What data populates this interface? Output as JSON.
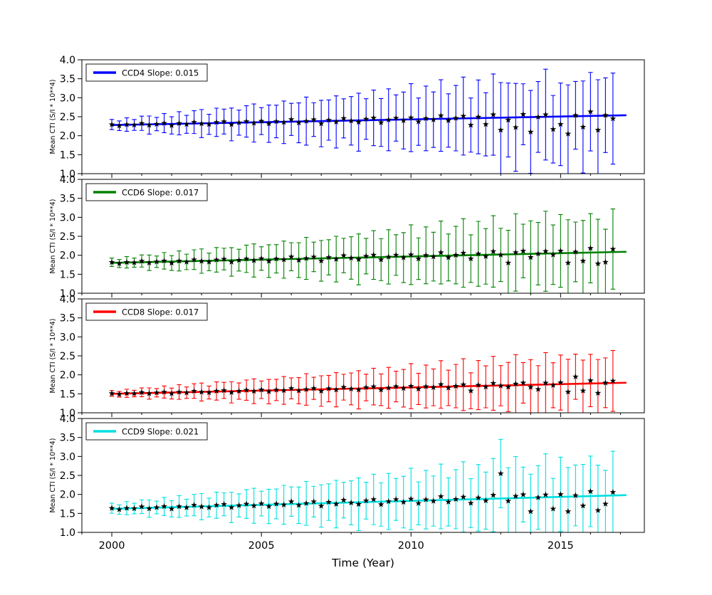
{
  "figure": {
    "title": "",
    "background": "#ffffff"
  },
  "chart_data": {
    "type": "errorbar-scatter",
    "xlabel": "Time (Year)",
    "ylabel": "Mean CTI (S/I * 10**4)",
    "xlim": [
      1999.0,
      2017.8
    ],
    "ylim": [
      1.0,
      4.0
    ],
    "x_ticks": [
      2000,
      2005,
      2010,
      2015
    ],
    "y_ticks": [
      1.0,
      1.5,
      2.0,
      2.5,
      3.0,
      3.5,
      4.0
    ],
    "grid": false,
    "legend_position": "upper-left",
    "marker": {
      "shape": "star",
      "color": "#000000"
    },
    "x": [
      2000,
      2000.25,
      2000.5,
      2000.75,
      2001,
      2001.25,
      2001.5,
      2001.75,
      2002,
      2002.25,
      2002.5,
      2002.75,
      2003,
      2003.25,
      2003.5,
      2003.75,
      2004,
      2004.25,
      2004.5,
      2004.75,
      2005,
      2005.25,
      2005.5,
      2005.75,
      2006,
      2006.25,
      2006.5,
      2006.75,
      2007,
      2007.25,
      2007.5,
      2007.75,
      2008,
      2008.25,
      2008.5,
      2008.75,
      2009,
      2009.25,
      2009.5,
      2009.75,
      2010,
      2010.25,
      2010.5,
      2010.75,
      2011,
      2011.25,
      2011.5,
      2011.75,
      2012,
      2012.25,
      2012.5,
      2012.75,
      2013,
      2013.25,
      2013.5,
      2013.75,
      2014,
      2014.25,
      2014.5,
      2014.75,
      2015,
      2015.25,
      2015.5,
      2015.75,
      2016,
      2016.25,
      2016.5,
      2016.75
    ],
    "series": [
      {
        "name": "CCD4",
        "legend": "CCD4 Slope: 0.015",
        "slope": 0.015,
        "color": "#0000ff",
        "fit": {
          "x": [
            2000,
            2017.2
          ],
          "y": [
            2.28,
            2.538
          ]
        },
        "y": [
          2.295,
          2.262,
          2.294,
          2.284,
          2.327,
          2.28,
          2.306,
          2.331,
          2.272,
          2.327,
          2.3,
          2.358,
          2.32,
          2.299,
          2.353,
          2.373,
          2.297,
          2.344,
          2.376,
          2.334,
          2.385,
          2.316,
          2.375,
          2.353,
          2.429,
          2.34,
          2.384,
          2.424,
          2.32,
          2.411,
          2.363,
          2.457,
          2.392,
          2.356,
          2.44,
          2.469,
          2.348,
          2.419,
          2.466,
          2.4,
          2.475,
          2.37,
          2.456,
          2.422,
          2.531,
          2.4,
          2.462,
          2.517,
          2.28,
          2.495,
          2.3,
          2.556,
          2.15,
          2.413,
          2.22,
          2.565,
          2.1,
          2.494,
          2.556,
          2.17,
          2.3,
          2.05,
          2.537,
          2.23,
          2.633,
          2.15,
          2.54,
          2.45
        ],
        "yerr": [
          0.133,
          0.126,
          0.177,
          0.143,
          0.188,
          0.239,
          0.176,
          0.252,
          0.227,
          0.305,
          0.237,
          0.301,
          0.37,
          0.265,
          0.372,
          0.328,
          0.432,
          0.33,
          0.413,
          0.502,
          0.355,
          0.492,
          0.429,
          0.56,
          0.423,
          0.525,
          0.633,
          0.444,
          0.612,
          0.53,
          0.687,
          0.516,
          0.638,
          0.764,
          0.534,
          0.732,
          0.631,
          0.815,
          0.61,
          0.75,
          0.895,
          0.623,
          0.852,
          0.731,
          0.942,
          0.703,
          0.862,
          1.027,
          0.713,
          0.972,
          0.832,
          1.07,
          1.25,
          0.974,
          1.158,
          0.802,
          1.092,
          0.933,
          1.197,
          0.89,
          1.087,
          1.289,
          0.892,
          1.212,
          1.034,
          1.325,
          0.983,
          1.199
        ]
      },
      {
        "name": "CCD6",
        "legend": "CCD6 Slope: 0.017",
        "slope": 0.017,
        "color": "#008000",
        "fit": {
          "x": [
            2000,
            2017.2
          ],
          "y": [
            1.8,
            2.092
          ]
        },
        "y": [
          1.815,
          1.782,
          1.815,
          1.806,
          1.849,
          1.802,
          1.83,
          1.854,
          1.796,
          1.851,
          1.825,
          1.884,
          1.846,
          1.825,
          1.88,
          1.901,
          1.825,
          1.872,
          1.906,
          1.863,
          1.915,
          1.846,
          1.907,
          1.885,
          1.961,
          1.872,
          1.918,
          1.957,
          1.854,
          1.945,
          1.898,
          1.993,
          1.928,
          1.892,
          1.977,
          2.007,
          1.886,
          1.957,
          2.006,
          1.939,
          2.015,
          1.91,
          1.998,
          1.964,
          2.073,
          1.942,
          2.006,
          2.06,
          1.912,
          2.039,
          1.971,
          2.102,
          2.01,
          1.8,
          2.074,
          2.113,
          1.947,
          2.042,
          2.106,
          2.015,
          2.115,
          1.8,
          2.089,
          1.85,
          2.185,
          1.78,
          1.82,
          2.163
        ],
        "yerr": [
          0.111,
          0.106,
          0.15,
          0.121,
          0.16,
          0.204,
          0.151,
          0.217,
          0.195,
          0.263,
          0.204,
          0.26,
          0.321,
          0.23,
          0.323,
          0.285,
          0.376,
          0.287,
          0.36,
          0.437,
          0.309,
          0.43,
          0.374,
          0.489,
          0.37,
          0.459,
          0.554,
          0.389,
          0.536,
          0.464,
          0.602,
          0.453,
          0.559,
          0.67,
          0.468,
          0.642,
          0.553,
          0.715,
          0.535,
          0.659,
          0.787,
          0.548,
          0.749,
          0.643,
          0.828,
          0.618,
          0.758,
          0.903,
          0.627,
          0.855,
          0.732,
          0.941,
          0.701,
          0.858,
          1.019,
          0.706,
          0.961,
          0.822,
          1.055,
          0.784,
          0.957,
          1.136,
          0.786,
          1.068,
          0.911,
          1.168,
          0.866,
          1.057
        ]
      },
      {
        "name": "CCD8",
        "legend": "CCD8 Slope: 0.017",
        "slope": 0.017,
        "color": "#ff0000",
        "fit": {
          "x": [
            2000,
            2017.2
          ],
          "y": [
            1.5,
            1.792
          ]
        },
        "y": [
          1.511,
          1.489,
          1.514,
          1.508,
          1.539,
          1.508,
          1.529,
          1.547,
          1.507,
          1.547,
          1.53,
          1.573,
          1.547,
          1.534,
          1.574,
          1.59,
          1.538,
          1.572,
          1.597,
          1.568,
          1.606,
          1.559,
          1.603,
          1.589,
          1.643,
          1.582,
          1.616,
          1.644,
          1.573,
          1.638,
          1.607,
          1.675,
          1.63,
          1.606,
          1.667,
          1.69,
          1.606,
          1.657,
          1.693,
          1.647,
          1.702,
          1.629,
          1.692,
          1.67,
          1.747,
          1.657,
          1.703,
          1.742,
          1.58,
          1.73,
          1.684,
          1.777,
          1.713,
          1.679,
          1.761,
          1.789,
          1.674,
          1.62,
          1.788,
          1.726,
          1.797,
          1.55,
          1.95,
          1.58,
          1.851,
          1.52,
          1.79,
          1.84
        ],
        "yerr": [
          0.077,
          0.075,
          0.107,
          0.087,
          0.116,
          0.148,
          0.11,
          0.159,
          0.143,
          0.193,
          0.151,
          0.192,
          0.237,
          0.17,
          0.24,
          0.212,
          0.28,
          0.214,
          0.268,
          0.326,
          0.231,
          0.321,
          0.28,
          0.366,
          0.277,
          0.344,
          0.415,
          0.292,
          0.402,
          0.348,
          0.452,
          0.34,
          0.42,
          0.504,
          0.352,
          0.483,
          0.417,
          0.539,
          0.403,
          0.496,
          0.593,
          0.413,
          0.565,
          0.485,
          0.625,
          0.467,
          0.572,
          0.682,
          0.474,
          0.646,
          0.553,
          0.711,
          0.53,
          0.648,
          0.771,
          0.534,
          0.727,
          0.622,
          0.798,
          0.593,
          0.725,
          0.86,
          0.595,
          0.808,
          0.69,
          0.884,
          0.656,
          0.801
        ]
      },
      {
        "name": "CCD9",
        "legend": "CCD9 Slope: 0.021",
        "slope": 0.021,
        "color": "#00e0e0",
        "fit": {
          "x": [
            2000,
            2017.2
          ],
          "y": [
            1.62,
            1.981
          ]
        },
        "y": [
          1.637,
          1.601,
          1.638,
          1.628,
          1.677,
          1.625,
          1.656,
          1.684,
          1.62,
          1.681,
          1.653,
          1.719,
          1.677,
          1.655,
          1.716,
          1.74,
          1.657,
          1.709,
          1.747,
          1.701,
          1.758,
          1.683,
          1.75,
          1.727,
          1.811,
          1.714,
          1.765,
          1.809,
          1.696,
          1.796,
          1.745,
          1.85,
          1.779,
          1.741,
          1.835,
          1.868,
          1.736,
          1.814,
          1.868,
          1.796,
          1.88,
          1.765,
          1.862,
          1.825,
          1.946,
          1.802,
          1.873,
          1.933,
          1.771,
          1.911,
          1.837,
          1.982,
          2.55,
          1.826,
          1.953,
          1.996,
          1.55,
          1.919,
          1.99,
          1.62,
          2.001,
          1.55,
          1.973,
          1.7,
          2.08,
          1.58,
          1.75,
          2.058
        ],
        "yerr": [
          0.133,
          0.124,
          0.173,
          0.139,
          0.181,
          0.228,
          0.167,
          0.239,
          0.214,
          0.286,
          0.221,
          0.281,
          0.345,
          0.246,
          0.345,
          0.303,
          0.4,
          0.304,
          0.38,
          0.461,
          0.326,
          0.452,
          0.393,
          0.513,
          0.387,
          0.48,
          0.578,
          0.405,
          0.558,
          0.482,
          0.626,
          0.47,
          0.58,
          0.694,
          0.485,
          0.664,
          0.572,
          0.739,
          0.553,
          0.679,
          0.811,
          0.564,
          0.771,
          0.661,
          0.852,
          0.635,
          0.779,
          0.927,
          0.644,
          0.877,
          0.751,
          0.965,
          0.9,
          0.878,
          1.044,
          0.723,
          0.983,
          0.84,
          1.078,
          0.801,
          0.978,
          1.16,
          0.802,
          1.09,
          0.93,
          1.191,
          0.884,
          1.078
        ]
      }
    ]
  }
}
